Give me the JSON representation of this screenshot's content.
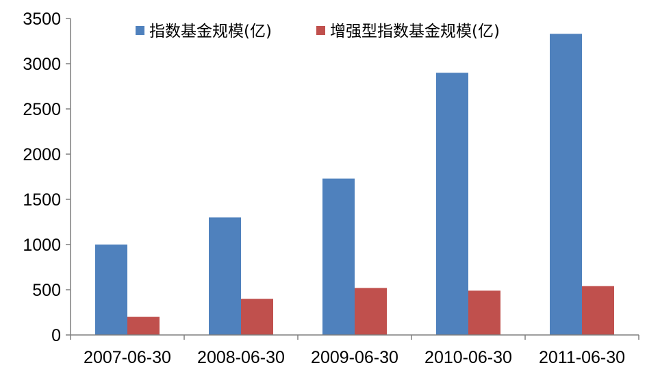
{
  "chart_data": {
    "type": "bar",
    "categories": [
      "2007-06-30",
      "2008-06-30",
      "2009-06-30",
      "2010-06-30",
      "2011-06-30"
    ],
    "series": [
      {
        "name": "指数基金规模(亿)",
        "color": "#4F81BD",
        "values": [
          1000,
          1300,
          1730,
          2900,
          3330
        ]
      },
      {
        "name": "增强型指数基金规模(亿)",
        "color": "#C0504D",
        "values": [
          200,
          400,
          520,
          490,
          540
        ]
      }
    ],
    "title": "",
    "xlabel": "",
    "ylabel": "",
    "ylim": [
      0,
      3500
    ],
    "yticks": [
      0,
      500,
      1000,
      1500,
      2000,
      2500,
      3000,
      3500
    ],
    "grid": false,
    "legend_position": "top"
  }
}
